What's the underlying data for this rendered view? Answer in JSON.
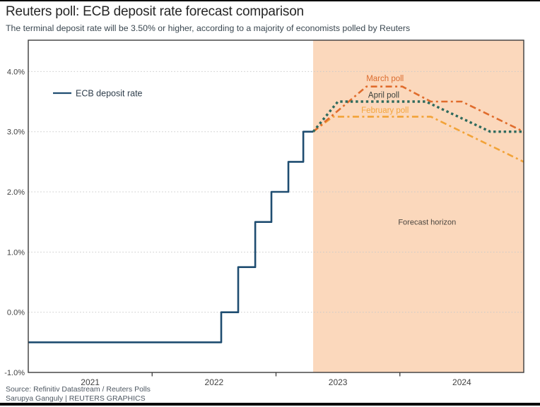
{
  "chart_data": {
    "type": "line",
    "title": "Reuters poll: ECB deposit rate forecast comparison",
    "subtitle": "The terminal deposit rate will be 3.50% or higher, according to a majority of economists polled by Reuters",
    "xlim": [
      2021.0,
      2025.0
    ],
    "ylim": [
      -1.0,
      4.52
    ],
    "grid": "horizontal-dotted",
    "x_ticks": [
      2022,
      2023,
      2024
    ],
    "x_year_labels": [
      {
        "x": 2021.5,
        "label": "2021"
      },
      {
        "x": 2022.5,
        "label": "2022"
      },
      {
        "x": 2023.5,
        "label": "2023"
      },
      {
        "x": 2024.5,
        "label": "2024"
      }
    ],
    "y_ticks": [
      {
        "value": 4.0,
        "label": "4.0%",
        "grid": true
      },
      {
        "value": 3.0,
        "label": "3.0%",
        "grid": true
      },
      {
        "value": 2.0,
        "label": "2.0%",
        "grid": true
      },
      {
        "value": 1.0,
        "label": "1.0%",
        "grid": true
      },
      {
        "value": 0.0,
        "label": "0.0%",
        "grid": true
      },
      {
        "value": -1.0,
        "label": "-1.0%",
        "grid": false
      }
    ],
    "forecast_region": {
      "x_start": 2023.3,
      "x_end": 2025.0,
      "fill": "#fbd8bc",
      "label": "Forecast horizon"
    },
    "legend": {
      "position": "top-left",
      "entries": [
        {
          "label": "ECB deposit rate",
          "color": "#1f4d71"
        }
      ]
    },
    "series": [
      {
        "name": "ECB deposit rate",
        "style": "solid",
        "color": "#1f4d71",
        "points": [
          [
            2021.0,
            -0.5
          ],
          [
            2022.558,
            -0.5
          ],
          [
            2022.558,
            0.0
          ],
          [
            2022.695,
            0.0
          ],
          [
            2022.695,
            0.75
          ],
          [
            2022.832,
            0.75
          ],
          [
            2022.832,
            1.5
          ],
          [
            2022.963,
            1.5
          ],
          [
            2022.963,
            2.0
          ],
          [
            2023.1,
            2.0
          ],
          [
            2023.1,
            2.5
          ],
          [
            2023.22,
            2.5
          ],
          [
            2023.22,
            3.0
          ],
          [
            2023.3,
            3.0
          ]
        ]
      },
      {
        "name": "February poll",
        "style": "dashdot",
        "color": "#f2a338",
        "points": [
          [
            2023.3,
            3.0
          ],
          [
            2023.46,
            3.25
          ],
          [
            2024.25,
            3.25
          ],
          [
            2025.0,
            2.5
          ]
        ]
      },
      {
        "name": "March poll",
        "style": "dashdot",
        "color": "#e06c2c",
        "points": [
          [
            2023.3,
            3.0
          ],
          [
            2023.73,
            3.75
          ],
          [
            2024.02,
            3.75
          ],
          [
            2024.25,
            3.5
          ],
          [
            2024.5,
            3.5
          ],
          [
            2025.0,
            3.0
          ]
        ]
      },
      {
        "name": "April poll",
        "style": "dotted",
        "color": "#2f6a5d",
        "points": [
          [
            2023.3,
            3.0
          ],
          [
            2023.5,
            3.5
          ],
          [
            2024.21,
            3.5
          ],
          [
            2024.73,
            3.0
          ],
          [
            2025.0,
            3.0
          ]
        ]
      }
    ],
    "annotations": [
      {
        "label": "March poll",
        "x": 2023.88,
        "y": 3.89,
        "color": "#dc6c2e",
        "size": 11.5
      },
      {
        "label": "April poll",
        "x": 2023.87,
        "y": 3.61,
        "color": "#3a403c",
        "size": 11.5
      },
      {
        "label": "February poll",
        "x": 2023.88,
        "y": 3.36,
        "color": "#f4a53d",
        "size": 11.5
      },
      {
        "label": "Forecast horizon",
        "x": 2024.22,
        "y": 1.5,
        "color": "#4a453f",
        "size": 11
      }
    ]
  },
  "colors": {
    "axis": "#3c3c3c",
    "gridline": "#c9c9c9",
    "tick_text": "#414141",
    "title_text": "#262626",
    "subtitle_text": "#3a4750",
    "footer_text": "#4d5761"
  },
  "footer": {
    "source": "Source: Refinitiv Datastream / Reuters Polls",
    "byline": "Sarupya Ganguly | REUTERS GRAPHICS"
  }
}
